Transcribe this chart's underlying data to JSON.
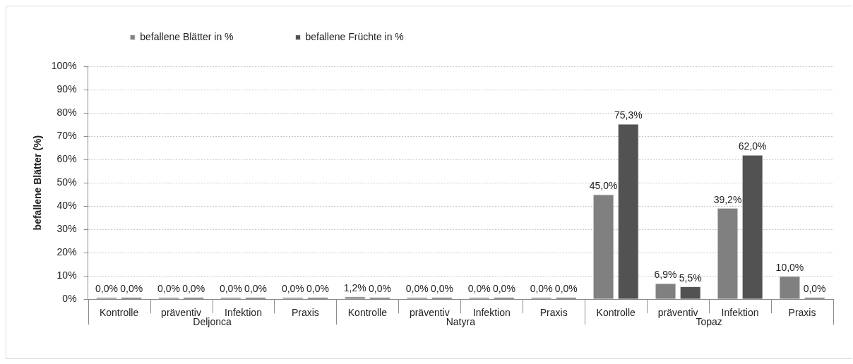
{
  "chart_data": {
    "type": "bar",
    "ylabel": "befallene Blätter (%)",
    "categories": [
      "Kontrolle",
      "präventiv",
      "Infektion",
      "Praxis",
      "Kontrolle",
      "präventiv",
      "Infektion",
      "Praxis",
      "Kontrolle",
      "präventiv",
      "Infektion",
      "Praxis"
    ],
    "series": [
      {
        "name": "befallene Blätter in %",
        "color": "#808080",
        "values": [
          0,
          0,
          0,
          0,
          1.2,
          0,
          0,
          0,
          45,
          6.9,
          39.2,
          10
        ],
        "value_labels": [
          "0,0%",
          "0,0%",
          "0,0%",
          "0,0%",
          "1,2%",
          "0,0%",
          "0,0%",
          "0,0%",
          "45,0%",
          "6,9%",
          "39,2%",
          "10,0%"
        ]
      },
      {
        "name": "befallene Früchte in %",
        "color": "#525252",
        "values": [
          0,
          0,
          0,
          0,
          0,
          0,
          0,
          0,
          75.3,
          5.5,
          62,
          0
        ],
        "value_labels": [
          "0,0%",
          "0,0%",
          "0,0%",
          "0,0%",
          "0,0%",
          "0,0%",
          "0,0%",
          "0,0%",
          "75,3%",
          "5,5%",
          "62,0%",
          "0,0%"
        ]
      }
    ],
    "ylim": [
      0,
      100
    ],
    "yticks": [
      {
        "value": 0,
        "label": "0%"
      },
      {
        "value": 10,
        "label": "10%"
      },
      {
        "value": 20,
        "label": "20%"
      },
      {
        "value": 30,
        "label": "30%"
      },
      {
        "value": 40,
        "label": "40%"
      },
      {
        "value": 50,
        "label": "50%"
      },
      {
        "value": 60,
        "label": "60%"
      },
      {
        "value": 70,
        "label": "70%"
      },
      {
        "value": 80,
        "label": "80%"
      },
      {
        "value": 90,
        "label": "90%"
      },
      {
        "value": 100,
        "label": "100%"
      }
    ],
    "grid": "y",
    "legend": "top",
    "annotations": [
      "Deljonca",
      "Natyra",
      "Topaz"
    ]
  }
}
